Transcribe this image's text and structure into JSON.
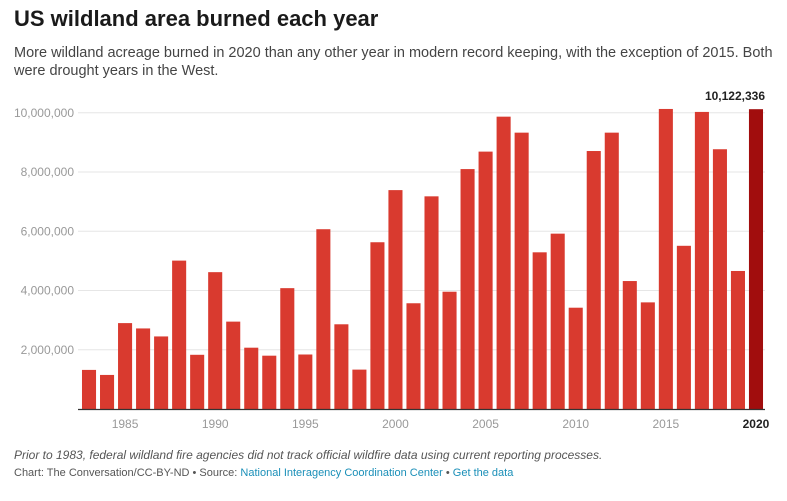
{
  "header": {
    "title": "US wildland area burned each year",
    "subtitle": "More wildland acreage burned in 2020 than any other year in modern record keeping, with the exception of 2015. Both were drought years in the West."
  },
  "footer": {
    "note": "Prior to 1983, federal wildland fire agencies did not track official wildfire data using current reporting processes.",
    "credit_prefix": "Chart: The Conversation/CC-BY-ND • Source:",
    "source_link": "National Interagency Coordination Center",
    "separator": "•",
    "data_link": "Get the data"
  },
  "colors": {
    "bar": "#d93a2f",
    "highlight": "#a10d0d",
    "grid": "#e6e6e6",
    "axis": "#333333",
    "tick_label": "#999999"
  },
  "chart_data": {
    "type": "bar",
    "title": "US wildland area burned each year",
    "x": [
      1983,
      1984,
      1985,
      1986,
      1987,
      1988,
      1989,
      1990,
      1991,
      1992,
      1993,
      1994,
      1995,
      1996,
      1997,
      1998,
      1999,
      2000,
      2001,
      2002,
      2003,
      2004,
      2005,
      2006,
      2007,
      2008,
      2009,
      2010,
      2011,
      2012,
      2013,
      2014,
      2015,
      2016,
      2017,
      2018,
      2019,
      2020
    ],
    "values": [
      1320000,
      1150000,
      2900000,
      2720000,
      2450000,
      5010000,
      1830000,
      4620000,
      2950000,
      2070000,
      1800000,
      4080000,
      1840000,
      6070000,
      2860000,
      1330000,
      5630000,
      7390000,
      3570000,
      7180000,
      3960000,
      8100000,
      8690000,
      9870000,
      9330000,
      5290000,
      5920000,
      3420000,
      8710000,
      9330000,
      4320000,
      3600000,
      10130000,
      5510000,
      10030000,
      8770000,
      4660000,
      10122336
    ],
    "highlight_year": 2020,
    "highlight_label": "10,122,336",
    "ylim": [
      0,
      10500000
    ],
    "yticks": [
      2000000,
      4000000,
      6000000,
      8000000,
      10000000
    ],
    "ytick_labels": [
      "2,000,000",
      "4,000,000",
      "6,000,000",
      "8,000,000",
      "10,000,000"
    ],
    "xticks": [
      1985,
      1990,
      1995,
      2000,
      2005,
      2010,
      2015,
      2020
    ],
    "xtick_labels": [
      "1985",
      "1990",
      "1995",
      "2000",
      "2005",
      "2010",
      "2015",
      "2020"
    ],
    "grid": true,
    "legend": false
  }
}
